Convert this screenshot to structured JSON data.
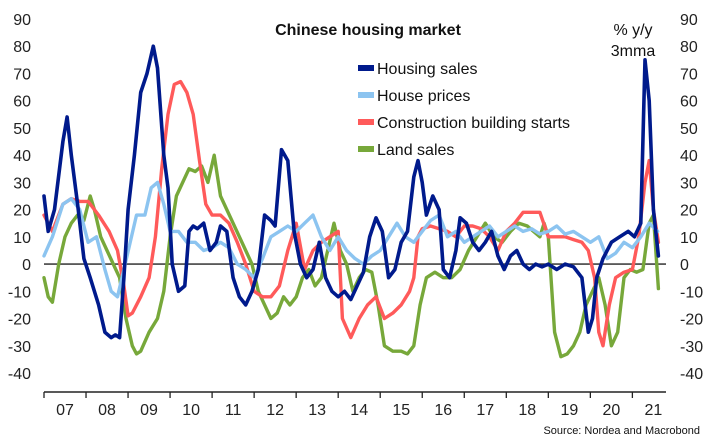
{
  "chart_data": {
    "type": "line",
    "title": "Chinese housing market",
    "unit": [
      "% y/y",
      "3mma"
    ],
    "source": "Source: Nordea and Macrobond",
    "ylim": [
      -40,
      90
    ],
    "yticks": [
      90,
      80,
      70,
      60,
      50,
      40,
      30,
      20,
      10,
      0,
      -10,
      -20,
      -30,
      -40
    ],
    "xlim": [
      2007.0,
      2021.8
    ],
    "xticks": [
      "07",
      "08",
      "09",
      "10",
      "11",
      "12",
      "13",
      "14",
      "15",
      "16",
      "17",
      "18",
      "19",
      "20",
      "21"
    ],
    "grid": false,
    "legend_position": "upper-center",
    "series": [
      {
        "name": "Housing sales",
        "color": "#001a8c",
        "x": [
          2007.0,
          2007.1,
          2007.25,
          2007.45,
          2007.55,
          2007.65,
          2007.8,
          2007.95,
          2008.1,
          2008.3,
          2008.45,
          2008.6,
          2008.7,
          2008.8,
          2008.9,
          2009.0,
          2009.15,
          2009.3,
          2009.45,
          2009.6,
          2009.7,
          2009.85,
          2009.95,
          2010.05,
          2010.2,
          2010.35,
          2010.45,
          2010.55,
          2010.65,
          2010.8,
          2010.95,
          2011.1,
          2011.2,
          2011.35,
          2011.5,
          2011.65,
          2011.8,
          2011.95,
          2012.1,
          2012.25,
          2012.4,
          2012.5,
          2012.65,
          2012.8,
          2012.95,
          2013.1,
          2013.25,
          2013.4,
          2013.55,
          2013.7,
          2013.85,
          2014.0,
          2014.15,
          2014.3,
          2014.45,
          2014.6,
          2014.75,
          2014.9,
          2015.05,
          2015.2,
          2015.35,
          2015.5,
          2015.65,
          2015.8,
          2015.9,
          2016.0,
          2016.1,
          2016.25,
          2016.4,
          2016.5,
          2016.65,
          2016.8,
          2016.9,
          2017.05,
          2017.2,
          2017.35,
          2017.5,
          2017.65,
          2017.8,
          2017.95,
          2018.1,
          2018.25,
          2018.4,
          2018.55,
          2018.7,
          2018.85,
          2019.0,
          2019.2,
          2019.4,
          2019.6,
          2019.8,
          2019.95,
          2020.05,
          2020.15,
          2020.3,
          2020.5,
          2020.7,
          2020.9,
          2021.05,
          2021.2,
          2021.3,
          2021.4,
          2021.5,
          2021.62
        ],
        "values": [
          25,
          12,
          20,
          45,
          54,
          40,
          22,
          2,
          -5,
          -15,
          -25,
          -27,
          -26,
          -27,
          -5,
          20,
          40,
          63,
          70,
          80,
          72,
          40,
          28,
          0,
          -10,
          -8,
          12,
          14,
          13,
          15,
          5,
          8,
          14,
          12,
          -5,
          -12,
          -15,
          -10,
          -2,
          18,
          16,
          14,
          42,
          38,
          12,
          0,
          -5,
          -2,
          8,
          -5,
          -10,
          -12,
          -10,
          -13,
          -8,
          -3,
          10,
          17,
          12,
          -5,
          -2,
          8,
          12,
          32,
          38,
          30,
          18,
          25,
          20,
          -2,
          -5,
          5,
          17,
          15,
          8,
          5,
          8,
          12,
          3,
          -2,
          3,
          5,
          0,
          -2,
          0,
          -1,
          0,
          -2,
          0,
          -1,
          -5,
          -25,
          -20,
          -5,
          2,
          8,
          10,
          12,
          10,
          15,
          75,
          60,
          20,
          3
        ]
      },
      {
        "name": "House prices",
        "color": "#8cc4f0",
        "x": [
          2007.0,
          2007.2,
          2007.45,
          2007.65,
          2007.85,
          2008.05,
          2008.25,
          2008.45,
          2008.6,
          2008.75,
          2008.9,
          2009.05,
          2009.2,
          2009.4,
          2009.55,
          2009.7,
          2009.85,
          2010.0,
          2010.2,
          2010.4,
          2010.6,
          2010.8,
          2011.0,
          2011.2,
          2011.4,
          2011.6,
          2011.8,
          2012.0,
          2012.2,
          2012.4,
          2012.6,
          2012.8,
          2013.0,
          2013.2,
          2013.4,
          2013.6,
          2013.8,
          2014.0,
          2014.2,
          2014.4,
          2014.6,
          2014.8,
          2015.0,
          2015.2,
          2015.4,
          2015.6,
          2015.8,
          2016.0,
          2016.2,
          2016.4,
          2016.6,
          2016.8,
          2017.0,
          2017.2,
          2017.4,
          2017.6,
          2017.8,
          2018.0,
          2018.2,
          2018.4,
          2018.6,
          2018.8,
          2019.0,
          2019.2,
          2019.4,
          2019.6,
          2019.8,
          2020.0,
          2020.2,
          2020.4,
          2020.6,
          2020.8,
          2021.0,
          2021.2,
          2021.4,
          2021.6
        ],
        "values": [
          3,
          10,
          22,
          24,
          20,
          8,
          10,
          -2,
          -10,
          -12,
          -2,
          8,
          18,
          18,
          28,
          30,
          22,
          12,
          12,
          8,
          8,
          5,
          6,
          8,
          6,
          0,
          -2,
          -5,
          2,
          10,
          12,
          14,
          12,
          15,
          18,
          10,
          5,
          10,
          5,
          2,
          0,
          3,
          5,
          10,
          15,
          10,
          8,
          12,
          16,
          18,
          10,
          12,
          8,
          10,
          12,
          14,
          10,
          12,
          14,
          12,
          13,
          11,
          12,
          14,
          11,
          12,
          10,
          8,
          10,
          2,
          4,
          8,
          6,
          10,
          15,
          12
        ]
      },
      {
        "name": "Construction building starts",
        "color": "#ff5a5a",
        "x": [
          2007.0,
          2007.2,
          2007.45,
          2007.65,
          2007.85,
          2008.05,
          2008.3,
          2008.55,
          2008.75,
          2008.9,
          2009.0,
          2009.1,
          2009.3,
          2009.5,
          2009.65,
          2009.8,
          2009.95,
          2010.1,
          2010.25,
          2010.4,
          2010.55,
          2010.7,
          2010.85,
          2011.0,
          2011.2,
          2011.4,
          2011.6,
          2011.8,
          2012.0,
          2012.2,
          2012.4,
          2012.6,
          2012.8,
          2013.0,
          2013.2,
          2013.4,
          2013.6,
          2013.8,
          2014.0,
          2014.1,
          2014.3,
          2014.5,
          2014.7,
          2014.9,
          2015.1,
          2015.3,
          2015.5,
          2015.7,
          2015.8,
          2015.9,
          2016.0,
          2016.2,
          2016.4,
          2016.6,
          2016.8,
          2017.0,
          2017.2,
          2017.4,
          2017.6,
          2017.8,
          2018.0,
          2018.2,
          2018.4,
          2018.6,
          2018.8,
          2019.0,
          2019.2,
          2019.4,
          2019.6,
          2019.8,
          2019.95,
          2020.1,
          2020.2,
          2020.3,
          2020.45,
          2020.6,
          2020.8,
          2021.0,
          2021.15,
          2021.3,
          2021.4,
          2021.5,
          2021.62
        ],
        "values": [
          18,
          12,
          22,
          24,
          23,
          23,
          18,
          12,
          5,
          -8,
          -19,
          -18,
          -12,
          -5,
          10,
          35,
          55,
          66,
          67,
          63,
          55,
          38,
          22,
          18,
          18,
          15,
          8,
          0,
          -10,
          -12,
          -12,
          -8,
          5,
          15,
          -2,
          5,
          8,
          10,
          12,
          -20,
          -27,
          -20,
          -15,
          -12,
          -20,
          -18,
          -15,
          -10,
          -5,
          10,
          13,
          14,
          13,
          12,
          10,
          14,
          14,
          13,
          10,
          5,
          12,
          15,
          19,
          19,
          19,
          10,
          10,
          10,
          9,
          8,
          5,
          -5,
          -25,
          -30,
          -15,
          -5,
          -3,
          -2,
          10,
          30,
          38,
          20,
          8
        ]
      },
      {
        "name": "Land sales",
        "color": "#77a83a",
        "x": [
          2007.0,
          2007.1,
          2007.2,
          2007.35,
          2007.5,
          2007.65,
          2007.8,
          2007.95,
          2008.1,
          2008.2,
          2008.35,
          2008.5,
          2008.65,
          2008.8,
          2008.95,
          2009.1,
          2009.2,
          2009.3,
          2009.5,
          2009.7,
          2009.85,
          2010.0,
          2010.15,
          2010.3,
          2010.45,
          2010.6,
          2010.75,
          2010.9,
          2011.05,
          2011.2,
          2011.35,
          2011.5,
          2011.65,
          2011.8,
          2011.95,
          2012.1,
          2012.25,
          2012.4,
          2012.55,
          2012.7,
          2012.85,
          2013.0,
          2013.15,
          2013.3,
          2013.45,
          2013.6,
          2013.75,
          2013.9,
          2014.05,
          2014.2,
          2014.35,
          2014.5,
          2014.65,
          2014.8,
          2014.95,
          2015.1,
          2015.3,
          2015.5,
          2015.65,
          2015.8,
          2015.95,
          2016.1,
          2016.3,
          2016.5,
          2016.7,
          2016.9,
          2017.1,
          2017.3,
          2017.5,
          2017.7,
          2017.9,
          2018.1,
          2018.3,
          2018.5,
          2018.65,
          2018.8,
          2018.9,
          2019.0,
          2019.15,
          2019.3,
          2019.45,
          2019.6,
          2019.75,
          2019.9,
          2020.05,
          2020.2,
          2020.35,
          2020.5,
          2020.65,
          2020.8,
          2020.95,
          2021.1,
          2021.25,
          2021.4,
          2021.5,
          2021.62
        ],
        "values": [
          -5,
          -12,
          -14,
          0,
          10,
          15,
          18,
          16,
          25,
          20,
          10,
          5,
          0,
          -5,
          -20,
          -30,
          -33,
          -32,
          -25,
          -20,
          -10,
          10,
          25,
          30,
          35,
          34,
          36,
          30,
          40,
          25,
          20,
          15,
          10,
          5,
          0,
          -10,
          -15,
          -20,
          -18,
          -12,
          -15,
          -12,
          -5,
          -2,
          -8,
          -5,
          5,
          15,
          5,
          0,
          -10,
          -5,
          -2,
          -3,
          -15,
          -30,
          -32,
          -32,
          -33,
          -30,
          -15,
          -5,
          -3,
          -5,
          -5,
          -2,
          5,
          10,
          15,
          10,
          8,
          12,
          15,
          14,
          12,
          10,
          15,
          10,
          -25,
          -34,
          -33,
          -30,
          -25,
          -15,
          -10,
          -5,
          -15,
          -30,
          -25,
          -5,
          -2,
          -3,
          -2,
          15,
          18,
          -9
        ]
      }
    ]
  }
}
